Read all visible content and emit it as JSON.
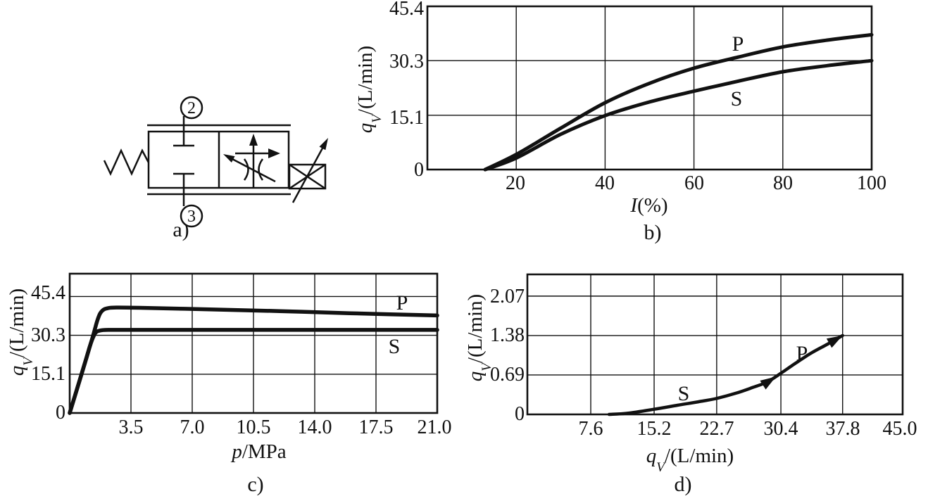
{
  "figure": {
    "background": "#ffffff",
    "ink_color": "#111111",
    "panels": {
      "a": {
        "caption": "a)",
        "type": "proportional-throttle-valve-symbol",
        "port_top": "2",
        "port_bottom": "3"
      },
      "b": {
        "caption": "b)",
        "xlabel": {
          "var": "I",
          "rest": "(%)"
        },
        "ylabel": {
          "var": "q",
          "sub": "V",
          "rest": "/(L/min)"
        },
        "x_ticks": [
          "20",
          "40",
          "60",
          "80",
          "100"
        ],
        "y_ticks": [
          "45.4",
          "30.3",
          "15.1",
          "0"
        ],
        "curve_labels": [
          "P",
          "S"
        ]
      },
      "c": {
        "caption": "c)",
        "xlabel": {
          "var": "p",
          "rest": "/MPa"
        },
        "ylabel": {
          "var": "q",
          "sub": "V",
          "rest": "/(L/min)"
        },
        "x_ticks": [
          "3.5",
          "7.0",
          "10.5",
          "14.0",
          "17.5",
          "21.0"
        ],
        "y_ticks": [
          "45.4",
          "30.3",
          "15.1",
          "0"
        ],
        "curve_labels": [
          "P",
          "S"
        ]
      },
      "d": {
        "caption": "d)",
        "xlabel": {
          "var": "q",
          "sub": "V",
          "rest": "/(L/min)"
        },
        "ylabel": {
          "var": "q",
          "sub": "V",
          "rest": "/(L/min)"
        },
        "x_ticks": [
          "7.6",
          "15.2",
          "22.7",
          "30.4",
          "37.8",
          "45.0"
        ],
        "y_ticks": [
          "2.07",
          "1.38",
          "0.69",
          "0"
        ],
        "curve_labels": [
          "P",
          "S"
        ]
      }
    }
  },
  "chart_data": [
    {
      "id": "b",
      "type": "line",
      "title": "",
      "xlabel": "I(%)",
      "ylabel": "qV/(L/min)",
      "xlim": [
        0,
        100
      ],
      "ylim": [
        0,
        45.4
      ],
      "x_ticks": [
        20,
        40,
        60,
        80,
        100
      ],
      "y_ticks": [
        0,
        15.1,
        30.3,
        45.4
      ],
      "grid": true,
      "series": [
        {
          "name": "P",
          "points": [
            [
              13,
              0
            ],
            [
              20,
              4.2
            ],
            [
              30,
              11.5
            ],
            [
              40,
              18.6
            ],
            [
              50,
              24.0
            ],
            [
              60,
              28.2
            ],
            [
              70,
              31.3
            ],
            [
              80,
              34.1
            ],
            [
              90,
              36.0
            ],
            [
              100,
              37.5
            ]
          ]
        },
        {
          "name": "S",
          "points": [
            [
              13,
              0
            ],
            [
              20,
              3.2
            ],
            [
              30,
              9.8
            ],
            [
              40,
              15.0
            ],
            [
              50,
              18.8
            ],
            [
              60,
              21.8
            ],
            [
              70,
              24.6
            ],
            [
              80,
              27.2
            ],
            [
              90,
              28.9
            ],
            [
              100,
              30.3
            ]
          ]
        }
      ]
    },
    {
      "id": "c",
      "type": "line",
      "title": "",
      "xlabel": "p/MPa",
      "ylabel": "qV/(L/min)",
      "xlim": [
        0,
        21
      ],
      "ylim": [
        0,
        54.3
      ],
      "x_ticks": [
        3.5,
        7.0,
        10.5,
        14.0,
        17.5,
        21.0
      ],
      "y_ticks": [
        0,
        15.1,
        30.3,
        45.4
      ],
      "grid": true,
      "series": [
        {
          "name": "P",
          "points": [
            [
              0,
              0
            ],
            [
              1.2,
              27
            ],
            [
              1.6,
              36.5
            ],
            [
              1.85,
              39.8
            ],
            [
              2.2,
              40.9
            ],
            [
              2.8,
              41.1
            ],
            [
              4,
              41.0
            ],
            [
              8,
              40.4
            ],
            [
              12,
              39.7
            ],
            [
              16,
              38.9
            ],
            [
              21,
              38.0
            ]
          ]
        },
        {
          "name": "S",
          "points": [
            [
              0,
              0
            ],
            [
              0.85,
              19
            ],
            [
              1.2,
              27
            ],
            [
              1.45,
              31
            ],
            [
              1.7,
              32.1
            ],
            [
              2.2,
              32.4
            ],
            [
              3.5,
              32.4
            ],
            [
              8,
              32.4
            ],
            [
              14,
              32.4
            ],
            [
              21,
              32.4
            ]
          ]
        }
      ]
    },
    {
      "id": "d",
      "type": "line",
      "title": "",
      "xlabel": "qV/(L/min)",
      "ylabel": "qV/(L/min)",
      "xlim": [
        0,
        45
      ],
      "ylim": [
        0,
        2.45
      ],
      "x_ticks": [
        7.6,
        15.2,
        22.7,
        30.4,
        37.8,
        45.0
      ],
      "y_ticks": [
        0,
        0.69,
        1.38,
        2.07
      ],
      "grid": true,
      "series": [
        {
          "name": "S-P",
          "points": [
            [
              9.8,
              0
            ],
            [
              12,
              0.02
            ],
            [
              15.2,
              0.09
            ],
            [
              18,
              0.16
            ],
            [
              20.5,
              0.22
            ],
            [
              22.7,
              0.28
            ],
            [
              25,
              0.37
            ],
            [
              27,
              0.47
            ],
            [
              28.8,
              0.57
            ],
            [
              30.4,
              0.72
            ],
            [
              32,
              0.88
            ],
            [
              34,
              1.07
            ],
            [
              36,
              1.23
            ],
            [
              37.8,
              1.38
            ]
          ],
          "arrows": [
            {
              "x": 29.8,
              "y": 0.66
            },
            {
              "x": 37.8,
              "y": 1.38
            }
          ]
        }
      ]
    }
  ]
}
